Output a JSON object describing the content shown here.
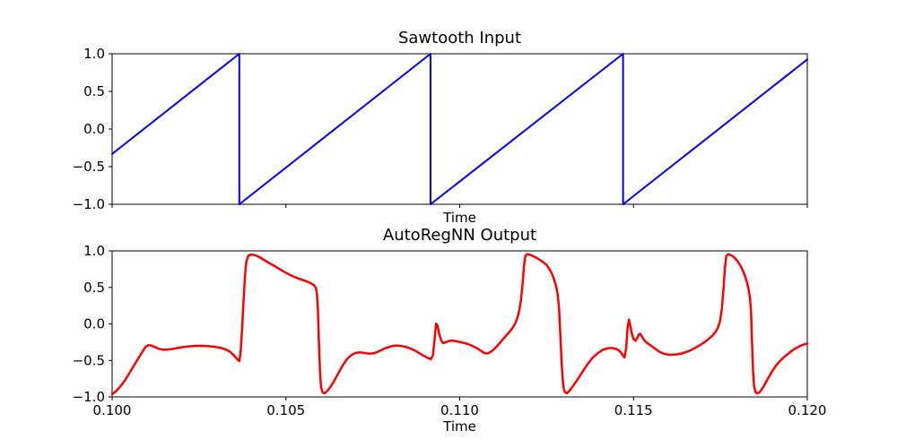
{
  "figure": {
    "background": "#ffffff",
    "spine_color": "#000000"
  },
  "chart_data": [
    {
      "type": "line",
      "title": "Sawtooth Input",
      "xlabel": "Time",
      "ylabel": "",
      "xlim": [
        0.1,
        0.12
      ],
      "ylim": [
        -1.0,
        1.0
      ],
      "grid": false,
      "legend": null,
      "xticks": [
        0.1,
        0.105,
        0.11,
        0.115,
        0.12
      ],
      "xtick_labels": [
        "",
        "",
        "",
        "",
        ""
      ],
      "yticks": [
        1.0,
        0.5,
        0.0,
        -0.5,
        -1.0
      ],
      "ytick_labels": [
        "1.0",
        "0.5",
        "0.0",
        "−0.5",
        "−1.0"
      ],
      "series": [
        {
          "name": "sawtooth-input",
          "color": "#0000ff",
          "linewidth": 2,
          "points": [
            [
              0.1,
              -0.331
            ],
            [
              0.10366,
              1.0
            ],
            [
              0.10366,
              -1.0
            ],
            [
              0.10916,
              1.0
            ],
            [
              0.10916,
              -1.0
            ],
            [
              0.1147,
              1.0
            ],
            [
              0.1147,
              -1.0
            ],
            [
              0.12,
              0.925
            ]
          ]
        }
      ]
    },
    {
      "type": "line",
      "title": "AutoRegNN Output",
      "xlabel": "Time",
      "ylabel": "",
      "xlim": [
        0.1,
        0.12
      ],
      "ylim": [
        -1.0,
        1.0
      ],
      "grid": false,
      "legend": null,
      "xticks": [
        0.1,
        0.105,
        0.11,
        0.115,
        0.12
      ],
      "xtick_labels": [
        "0.100",
        "0.105",
        "0.110",
        "0.115",
        "0.120"
      ],
      "yticks": [
        1.0,
        0.5,
        0.0,
        -0.5,
        -1.0
      ],
      "ytick_labels": [
        "1.0",
        "0.5",
        "0.0",
        "−0.5",
        "−1.0"
      ],
      "series": [
        {
          "name": "autoregnn-output",
          "color": "#ff0000",
          "linewidth": 2.5,
          "points": [
            [
              0.1,
              -0.96
            ],
            [
              0.10012,
              -0.92
            ],
            [
              0.10024,
              -0.855
            ],
            [
              0.10038,
              -0.765
            ],
            [
              0.10052,
              -0.655
            ],
            [
              0.10066,
              -0.545
            ],
            [
              0.10078,
              -0.45
            ],
            [
              0.10088,
              -0.375
            ],
            [
              0.10096,
              -0.315
            ],
            [
              0.10104,
              -0.292
            ],
            [
              0.10112,
              -0.295
            ],
            [
              0.10122,
              -0.315
            ],
            [
              0.10134,
              -0.34
            ],
            [
              0.10146,
              -0.352
            ],
            [
              0.10158,
              -0.352
            ],
            [
              0.10172,
              -0.345
            ],
            [
              0.10188,
              -0.33
            ],
            [
              0.10204,
              -0.318
            ],
            [
              0.1022,
              -0.308
            ],
            [
              0.10236,
              -0.302
            ],
            [
              0.10252,
              -0.3
            ],
            [
              0.10268,
              -0.302
            ],
            [
              0.10284,
              -0.308
            ],
            [
              0.103,
              -0.318
            ],
            [
              0.10314,
              -0.33
            ],
            [
              0.10326,
              -0.348
            ],
            [
              0.10338,
              -0.378
            ],
            [
              0.10348,
              -0.42
            ],
            [
              0.10358,
              -0.472
            ],
            [
              0.10366,
              -0.51
            ],
            [
              0.1037,
              -0.37
            ],
            [
              0.10374,
              -0.06
            ],
            [
              0.10378,
              0.3
            ],
            [
              0.10382,
              0.64
            ],
            [
              0.10386,
              0.85
            ],
            [
              0.10392,
              0.935
            ],
            [
              0.104,
              0.95
            ],
            [
              0.10412,
              0.94
            ],
            [
              0.10426,
              0.908
            ],
            [
              0.1044,
              0.868
            ],
            [
              0.10455,
              0.825
            ],
            [
              0.1047,
              0.785
            ],
            [
              0.10485,
              0.742
            ],
            [
              0.105,
              0.7
            ],
            [
              0.10515,
              0.663
            ],
            [
              0.1053,
              0.632
            ],
            [
              0.10545,
              0.607
            ],
            [
              0.10558,
              0.585
            ],
            [
              0.1057,
              0.56
            ],
            [
              0.1058,
              0.532
            ],
            [
              0.10586,
              0.498
            ],
            [
              0.10589,
              0.42
            ],
            [
              0.10592,
              0.2
            ],
            [
              0.10595,
              -0.25
            ],
            [
              0.10598,
              -0.65
            ],
            [
              0.10601,
              -0.86
            ],
            [
              0.10605,
              -0.935
            ],
            [
              0.1061,
              -0.95
            ],
            [
              0.10618,
              -0.925
            ],
            [
              0.10628,
              -0.865
            ],
            [
              0.1064,
              -0.77
            ],
            [
              0.10652,
              -0.665
            ],
            [
              0.10664,
              -0.565
            ],
            [
              0.10676,
              -0.48
            ],
            [
              0.10688,
              -0.428
            ],
            [
              0.107,
              -0.398
            ],
            [
              0.10712,
              -0.39
            ],
            [
              0.10726,
              -0.398
            ],
            [
              0.1074,
              -0.408
            ],
            [
              0.10755,
              -0.4
            ],
            [
              0.1077,
              -0.37
            ],
            [
              0.10785,
              -0.335
            ],
            [
              0.108,
              -0.31
            ],
            [
              0.10815,
              -0.296
            ],
            [
              0.1083,
              -0.3
            ],
            [
              0.10845,
              -0.315
            ],
            [
              0.1086,
              -0.34
            ],
            [
              0.10875,
              -0.375
            ],
            [
              0.1089,
              -0.42
            ],
            [
              0.10904,
              -0.455
            ],
            [
              0.10917,
              -0.485
            ],
            [
              0.10923,
              -0.43
            ],
            [
              0.10928,
              -0.2
            ],
            [
              0.10932,
              0.005
            ],
            [
              0.10936,
              -0.02
            ],
            [
              0.10941,
              -0.14
            ],
            [
              0.10947,
              -0.23
            ],
            [
              0.10953,
              -0.265
            ],
            [
              0.1096,
              -0.252
            ],
            [
              0.10968,
              -0.235
            ],
            [
              0.10977,
              -0.228
            ],
            [
              0.10988,
              -0.235
            ],
            [
              0.11002,
              -0.25
            ],
            [
              0.11016,
              -0.265
            ],
            [
              0.1103,
              -0.288
            ],
            [
              0.11044,
              -0.318
            ],
            [
              0.11058,
              -0.358
            ],
            [
              0.11068,
              -0.39
            ],
            [
              0.11076,
              -0.405
            ],
            [
              0.11084,
              -0.398
            ],
            [
              0.11094,
              -0.368
            ],
            [
              0.11104,
              -0.322
            ],
            [
              0.11114,
              -0.268
            ],
            [
              0.11124,
              -0.212
            ],
            [
              0.11134,
              -0.158
            ],
            [
              0.11144,
              -0.105
            ],
            [
              0.11152,
              -0.055
            ],
            [
              0.11159,
              0.0
            ],
            [
              0.11165,
              0.07
            ],
            [
              0.11171,
              0.175
            ],
            [
              0.11176,
              0.32
            ],
            [
              0.11181,
              0.55
            ],
            [
              0.11185,
              0.8
            ],
            [
              0.11189,
              0.93
            ],
            [
              0.11194,
              0.955
            ],
            [
              0.11205,
              0.942
            ],
            [
              0.1122,
              0.908
            ],
            [
              0.11235,
              0.862
            ],
            [
              0.1125,
              0.808
            ],
            [
              0.11262,
              0.72
            ],
            [
              0.1127,
              0.63
            ],
            [
              0.11277,
              0.52
            ],
            [
              0.11282,
              0.4
            ],
            [
              0.11286,
              0.2
            ],
            [
              0.1129,
              -0.2
            ],
            [
              0.11294,
              -0.6
            ],
            [
              0.11298,
              -0.85
            ],
            [
              0.11302,
              -0.93
            ],
            [
              0.11308,
              -0.95
            ],
            [
              0.11316,
              -0.915
            ],
            [
              0.11326,
              -0.85
            ],
            [
              0.1134,
              -0.755
            ],
            [
              0.11354,
              -0.65
            ],
            [
              0.11368,
              -0.55
            ],
            [
              0.11382,
              -0.465
            ],
            [
              0.11396,
              -0.405
            ],
            [
              0.1141,
              -0.36
            ],
            [
              0.11424,
              -0.335
            ],
            [
              0.11438,
              -0.33
            ],
            [
              0.1145,
              -0.342
            ],
            [
              0.1146,
              -0.37
            ],
            [
              0.11468,
              -0.42
            ],
            [
              0.11474,
              -0.46
            ],
            [
              0.11479,
              -0.33
            ],
            [
              0.11483,
              -0.05
            ],
            [
              0.11487,
              0.06
            ],
            [
              0.11491,
              -0.03
            ],
            [
              0.11496,
              -0.15
            ],
            [
              0.11501,
              -0.215
            ],
            [
              0.11506,
              -0.23
            ],
            [
              0.11511,
              -0.19
            ],
            [
              0.11515,
              -0.148
            ],
            [
              0.11519,
              -0.135
            ],
            [
              0.11524,
              -0.17
            ],
            [
              0.11531,
              -0.225
            ],
            [
              0.1154,
              -0.265
            ],
            [
              0.11551,
              -0.3
            ],
            [
              0.11563,
              -0.342
            ],
            [
              0.11575,
              -0.383
            ],
            [
              0.11587,
              -0.408
            ],
            [
              0.116,
              -0.42
            ],
            [
              0.11614,
              -0.422
            ],
            [
              0.11628,
              -0.416
            ],
            [
              0.11643,
              -0.4
            ],
            [
              0.11658,
              -0.374
            ],
            [
              0.11673,
              -0.34
            ],
            [
              0.11688,
              -0.3
            ],
            [
              0.11703,
              -0.255
            ],
            [
              0.11716,
              -0.208
            ],
            [
              0.11727,
              -0.162
            ],
            [
              0.11736,
              -0.11
            ],
            [
              0.11743,
              -0.05
            ],
            [
              0.11749,
              0.04
            ],
            [
              0.11754,
              0.2
            ],
            [
              0.11759,
              0.48
            ],
            [
              0.11763,
              0.77
            ],
            [
              0.11767,
              0.93
            ],
            [
              0.11772,
              0.955
            ],
            [
              0.11782,
              0.938
            ],
            [
              0.11792,
              0.9
            ],
            [
              0.11801,
              0.848
            ],
            [
              0.11809,
              0.785
            ],
            [
              0.11816,
              0.715
            ],
            [
              0.11822,
              0.638
            ],
            [
              0.11827,
              0.56
            ],
            [
              0.11831,
              0.478
            ],
            [
              0.11835,
              0.36
            ],
            [
              0.11838,
              0.18
            ],
            [
              0.11841,
              -0.25
            ],
            [
              0.11844,
              -0.65
            ],
            [
              0.11847,
              -0.855
            ],
            [
              0.11851,
              -0.935
            ],
            [
              0.11856,
              -0.953
            ],
            [
              0.11864,
              -0.93
            ],
            [
              0.11874,
              -0.86
            ],
            [
              0.11886,
              -0.755
            ],
            [
              0.11898,
              -0.655
            ],
            [
              0.1191,
              -0.57
            ],
            [
              0.11922,
              -0.505
            ],
            [
              0.11934,
              -0.45
            ],
            [
              0.11946,
              -0.405
            ],
            [
              0.11958,
              -0.36
            ],
            [
              0.1197,
              -0.325
            ],
            [
              0.11982,
              -0.296
            ],
            [
              0.11992,
              -0.278
            ],
            [
              0.12,
              -0.272
            ]
          ]
        }
      ]
    }
  ]
}
